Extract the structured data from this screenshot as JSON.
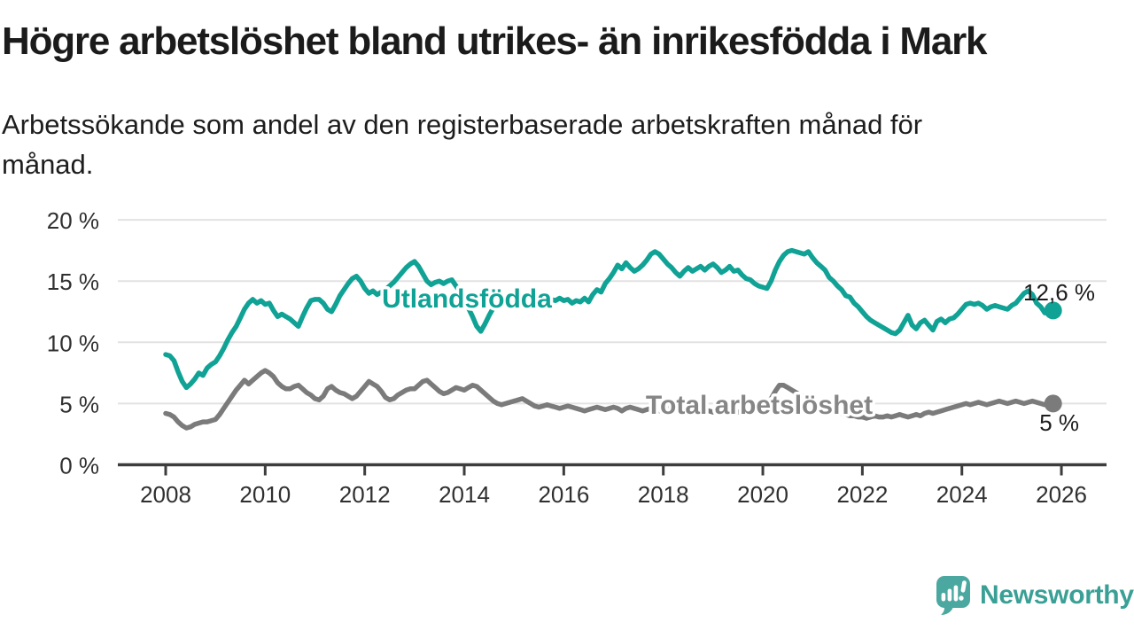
{
  "header": {
    "title": "Högre arbetslöshet bland utrikes- än inrikesfödda i Mark",
    "subtitle_lines": [
      "Arbetssökande som andel av den registerbaserade arbetskraften månad för",
      "månad."
    ]
  },
  "chart_data": {
    "type": "line",
    "title": "",
    "xlabel": "",
    "ylabel": "",
    "grid": "horizontal-only",
    "ylim": [
      0,
      20
    ],
    "yticks": [
      "0 %",
      "5 %",
      "10 %",
      "15 %",
      "20 %"
    ],
    "ytick_values": [
      0,
      5,
      10,
      15,
      20
    ],
    "xticks": [
      "2008",
      "2010",
      "2012",
      "2014",
      "2016",
      "2018",
      "2020",
      "2022",
      "2024",
      "2026"
    ],
    "xtick_years": [
      2008,
      2010,
      2012,
      2014,
      2016,
      2018,
      2020,
      2022,
      2024,
      2026
    ],
    "x_start_year": 2008,
    "points_per_year": 12,
    "x_range_months": [
      "2008-01",
      "2025-11"
    ],
    "series": [
      {
        "name": "Utlandsfödda",
        "color": "#10a295",
        "label_color": "#10a295",
        "end_label": "12,6 %",
        "end_value": 12.6,
        "values": [
          9.0,
          8.9,
          8.5,
          7.6,
          6.8,
          6.3,
          6.6,
          7.0,
          7.5,
          7.3,
          7.9,
          8.2,
          8.4,
          8.9,
          9.5,
          10.2,
          10.8,
          11.3,
          12.0,
          12.7,
          13.2,
          13.5,
          13.2,
          13.4,
          13.1,
          13.2,
          12.6,
          12.1,
          12.3,
          12.1,
          11.9,
          11.6,
          11.3,
          12.1,
          12.8,
          13.4,
          13.5,
          13.5,
          13.2,
          12.7,
          12.5,
          13.1,
          13.8,
          14.3,
          14.8,
          15.2,
          15.4,
          15.0,
          14.4,
          14.0,
          14.2,
          13.9,
          14.1,
          14.3,
          14.6,
          14.9,
          15.3,
          15.7,
          16.1,
          16.4,
          16.6,
          16.2,
          15.6,
          15.0,
          14.7,
          14.9,
          15.0,
          14.8,
          15.0,
          15.1,
          14.6,
          14.1,
          13.5,
          12.8,
          12.1,
          11.3,
          10.9,
          11.5,
          12.2,
          12.8,
          13.1,
          13.3,
          13.4,
          13.3,
          13.4,
          13.3,
          13.5,
          13.4,
          13.2,
          13.3,
          13.4,
          13.2,
          13.3,
          13.5,
          13.4,
          13.6,
          13.4,
          13.5,
          13.2,
          13.4,
          13.3,
          13.6,
          13.3,
          13.9,
          14.3,
          14.1,
          14.8,
          15.2,
          15.7,
          16.3,
          16.0,
          16.5,
          16.1,
          15.8,
          16.0,
          16.3,
          16.7,
          17.2,
          17.4,
          17.2,
          16.8,
          16.4,
          16.1,
          15.7,
          15.4,
          15.8,
          16.1,
          15.8,
          16.0,
          16.2,
          15.9,
          16.2,
          16.4,
          16.1,
          15.7,
          15.9,
          16.2,
          15.8,
          15.9,
          15.5,
          15.2,
          15.1,
          14.8,
          14.6,
          14.5,
          14.4,
          15.0,
          15.9,
          16.6,
          17.1,
          17.4,
          17.5,
          17.4,
          17.3,
          17.2,
          17.4,
          16.9,
          16.5,
          16.2,
          15.9,
          15.3,
          15.0,
          14.6,
          14.3,
          13.8,
          13.7,
          13.2,
          12.9,
          12.5,
          12.1,
          11.8,
          11.6,
          11.4,
          11.2,
          11.0,
          10.8,
          10.7,
          11.0,
          11.6,
          12.2,
          11.4,
          11.1,
          11.6,
          11.8,
          11.4,
          11.0,
          11.7,
          11.9,
          11.6,
          11.9,
          12.0,
          12.3,
          12.7,
          13.1,
          13.2,
          13.1,
          13.2,
          13.0,
          12.7,
          12.9,
          13.0,
          12.9,
          12.8,
          12.7,
          13.0,
          13.2,
          13.6,
          14.0,
          14.2,
          13.9,
          13.2,
          12.9,
          12.4,
          12.5,
          12.6
        ]
      },
      {
        "name": "Total arbetslöshet",
        "color": "#7b7b7b",
        "label_color": "#868686",
        "end_label": "5 %",
        "end_value": 5.0,
        "values": [
          4.2,
          4.1,
          3.9,
          3.5,
          3.2,
          3.0,
          3.1,
          3.3,
          3.4,
          3.5,
          3.5,
          3.6,
          3.7,
          4.1,
          4.6,
          5.1,
          5.6,
          6.1,
          6.5,
          6.9,
          6.6,
          6.9,
          7.2,
          7.5,
          7.7,
          7.5,
          7.2,
          6.7,
          6.4,
          6.2,
          6.2,
          6.4,
          6.5,
          6.2,
          5.9,
          5.7,
          5.4,
          5.3,
          5.6,
          6.2,
          6.4,
          6.1,
          5.9,
          5.8,
          5.6,
          5.4,
          5.6,
          6.0,
          6.4,
          6.8,
          6.6,
          6.4,
          6.0,
          5.5,
          5.3,
          5.4,
          5.7,
          5.9,
          6.1,
          6.2,
          6.2,
          6.5,
          6.8,
          6.9,
          6.6,
          6.3,
          6.0,
          5.8,
          5.9,
          6.1,
          6.3,
          6.2,
          6.1,
          6.3,
          6.5,
          6.4,
          6.1,
          5.8,
          5.5,
          5.2,
          5.0,
          4.9,
          5.0,
          5.1,
          5.2,
          5.3,
          5.4,
          5.2,
          5.0,
          4.8,
          4.7,
          4.8,
          4.9,
          4.8,
          4.7,
          4.6,
          4.7,
          4.8,
          4.7,
          4.6,
          4.5,
          4.4,
          4.5,
          4.6,
          4.7,
          4.6,
          4.5,
          4.6,
          4.7,
          4.6,
          4.4,
          4.6,
          4.7,
          4.6,
          4.5,
          4.4,
          4.5,
          4.6,
          4.5,
          4.4,
          4.5,
          4.6,
          4.5,
          4.4,
          4.3,
          4.4,
          4.5,
          4.4,
          4.3,
          4.4,
          4.5,
          4.4,
          4.3,
          4.4,
          4.5,
          4.4,
          4.3,
          4.2,
          4.3,
          4.4,
          4.3,
          4.4,
          4.5,
          4.5,
          4.6,
          4.8,
          5.4,
          6.0,
          6.5,
          6.5,
          6.3,
          6.1,
          5.9,
          5.7,
          5.5,
          5.3,
          5.1,
          4.9,
          4.8,
          4.6,
          4.5,
          4.4,
          4.3,
          4.2,
          4.1,
          4.0,
          4.0,
          3.9,
          3.9,
          3.8,
          3.9,
          4.0,
          3.9,
          3.9,
          4.0,
          3.9,
          4.0,
          4.1,
          4.0,
          3.9,
          4.0,
          4.1,
          4.0,
          4.2,
          4.3,
          4.2,
          4.3,
          4.4,
          4.5,
          4.6,
          4.7,
          4.8,
          4.9,
          5.0,
          4.9,
          5.0,
          5.1,
          5.0,
          4.9,
          5.0,
          5.1,
          5.2,
          5.1,
          5.0,
          5.1,
          5.2,
          5.1,
          5.0,
          5.1,
          5.2,
          5.1,
          5.0,
          4.9,
          5.0,
          5.0
        ]
      }
    ],
    "colors": {
      "grid": "#e2e2e2",
      "axis": "#3d3d3d",
      "tick_text": "#303030",
      "annotation_text": "#1c1c1c"
    }
  },
  "footer": {
    "brand": "Newsworthy",
    "brand_color": "#3aa096",
    "icon": "newsworthy-speech-bubble-bar-chart-icon",
    "icon_color": "#4ba8a0"
  }
}
